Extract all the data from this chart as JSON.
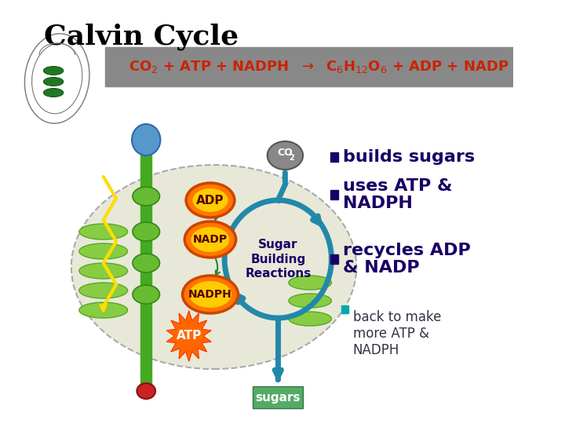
{
  "title": "Calvin Cycle",
  "title_fontsize": 26,
  "eq_bar_color": "#888888",
  "eq_text_color": "#cc2200",
  "bullet_color": "#1a0066",
  "bullet_small_color": "#00aaaa",
  "bullets": [
    "builds sugars",
    "uses ATP &\nNADPH",
    "recycles ADP\n& NADP"
  ],
  "sub_bullet": "back to make\nmore ATP &\nNADPH",
  "bg_color": "#ffffff",
  "chloroplast_fill": "#e8e8d8",
  "chloroplast_edge": "#aaaaaa",
  "green_bar_color": "#44aa22",
  "green_stack_color": "#88cc44",
  "green_stack_edge": "#55aa22",
  "orange_fill": "#ff7700",
  "orange_edge": "#cc4400",
  "yellow_fill": "#ffcc00",
  "atp_orange": "#ff6600",
  "atp_red": "#ff2200",
  "blue_circle_color": "#5599cc",
  "gray_circle_color": "#888888",
  "teal_arrow_color": "#2288aa",
  "green_arrow_color": "#228833",
  "yellow_zz_color": "#ffdd00",
  "sugars_box_color": "#55aa66",
  "red_oval_color": "#cc2222",
  "sugar_building_color": "#1a0066"
}
